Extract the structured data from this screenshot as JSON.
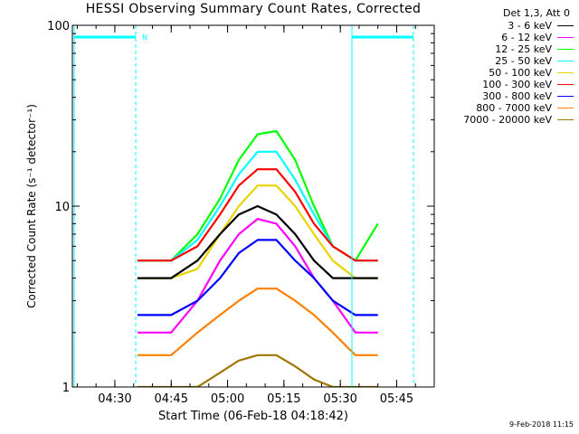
{
  "chart_data": {
    "type": "line",
    "title": "HESSI Observing Summary Count Rates, Corrected",
    "xlabel": "Start Time (06-Feb-18 04:18:42)",
    "ylabel": "Corrected Count Rate (s⁻¹ detector⁻¹)",
    "y_scale": "log",
    "ylim": [
      1,
      100
    ],
    "y_tick_labels": [
      "1",
      "10",
      "100"
    ],
    "xlim": [
      "04:18:42",
      "05:55:00"
    ],
    "x_tick_labels": [
      "04:30",
      "04:45",
      "05:00",
      "05:15",
      "05:30",
      "05:45"
    ],
    "legend_placement": "right",
    "legend_header": "Det 1,3, Att 0",
    "annotation_n": "N",
    "footer": "9-Feb-2018 11:15",
    "series": [
      {
        "name": "3 - 6 keV",
        "color": "#000000",
        "x": [
          "04:36",
          "04:45",
          "04:52",
          "04:58",
          "05:03",
          "05:08",
          "05:13",
          "05:18",
          "05:23",
          "05:28",
          "05:34",
          "05:40"
        ],
        "y": [
          4,
          4,
          5,
          7,
          9,
          10,
          9,
          7,
          5,
          4,
          4,
          4
        ]
      },
      {
        "name": "6 - 12 keV",
        "color": "#ff00ff",
        "x": [
          "04:36",
          "04:45",
          "04:52",
          "04:58",
          "05:03",
          "05:08",
          "05:13",
          "05:18",
          "05:23",
          "05:28",
          "05:34",
          "05:40"
        ],
        "y": [
          2,
          2,
          3,
          5,
          7,
          8.5,
          8,
          6,
          4,
          3,
          2,
          2
        ]
      },
      {
        "name": "12 - 25 keV",
        "color": "#00ff00",
        "x": [
          "04:36",
          "04:45",
          "04:52",
          "04:58",
          "05:03",
          "05:08",
          "05:13",
          "05:18",
          "05:23",
          "05:28",
          "05:34",
          "05:40"
        ],
        "y": [
          5,
          5,
          7,
          11,
          18,
          25,
          26,
          18,
          10,
          6,
          5,
          8
        ]
      },
      {
        "name": "25 - 50 keV",
        "color": "#00ffff",
        "x": [
          "04:36",
          "04:45",
          "04:52",
          "04:58",
          "05:03",
          "05:08",
          "05:13",
          "05:18",
          "05:23",
          "05:28",
          "05:34",
          "05:40"
        ],
        "y": [
          5,
          5,
          6.5,
          10,
          15,
          20,
          20,
          14,
          9,
          6,
          5,
          5
        ]
      },
      {
        "name": "50 - 100 keV",
        "color": "#e8d400",
        "x": [
          "04:36",
          "04:45",
          "04:52",
          "04:58",
          "05:03",
          "05:08",
          "05:13",
          "05:18",
          "05:23",
          "05:28",
          "05:34",
          "05:40"
        ],
        "y": [
          4,
          4,
          4.5,
          7,
          10,
          13,
          13,
          10,
          7,
          5,
          4,
          4
        ]
      },
      {
        "name": "100 - 300 keV",
        "color": "#ff0000",
        "x": [
          "04:36",
          "04:45",
          "04:52",
          "04:58",
          "05:03",
          "05:08",
          "05:13",
          "05:18",
          "05:23",
          "05:28",
          "05:34",
          "05:40"
        ],
        "y": [
          5,
          5,
          6,
          9,
          13,
          16,
          16,
          12,
          8,
          6,
          5,
          5
        ]
      },
      {
        "name": "300 - 800 keV",
        "color": "#0000ff",
        "x": [
          "04:36",
          "04:45",
          "04:52",
          "04:58",
          "05:03",
          "05:08",
          "05:13",
          "05:18",
          "05:23",
          "05:28",
          "05:34",
          "05:40"
        ],
        "y": [
          2.5,
          2.5,
          3,
          4,
          5.5,
          6.5,
          6.5,
          5,
          4,
          3,
          2.5,
          2.5
        ]
      },
      {
        "name": "800 - 7000 keV",
        "color": "#ff8000",
        "x": [
          "04:36",
          "04:45",
          "04:52",
          "04:58",
          "05:03",
          "05:08",
          "05:13",
          "05:18",
          "05:23",
          "05:28",
          "05:34",
          "05:40"
        ],
        "y": [
          1.5,
          1.5,
          2,
          2.5,
          3,
          3.5,
          3.5,
          3,
          2.5,
          2,
          1.5,
          1.5
        ]
      },
      {
        "name": "7000 - 20000 keV",
        "color": "#a07800",
        "x": [
          "04:36",
          "04:45",
          "04:52",
          "04:58",
          "05:03",
          "05:08",
          "05:13",
          "05:18",
          "05:23",
          "05:28",
          "05:34",
          "05:40"
        ],
        "y": [
          1,
          1,
          1,
          1.2,
          1.4,
          1.5,
          1.5,
          1.3,
          1.1,
          1,
          1,
          1
        ]
      }
    ]
  }
}
